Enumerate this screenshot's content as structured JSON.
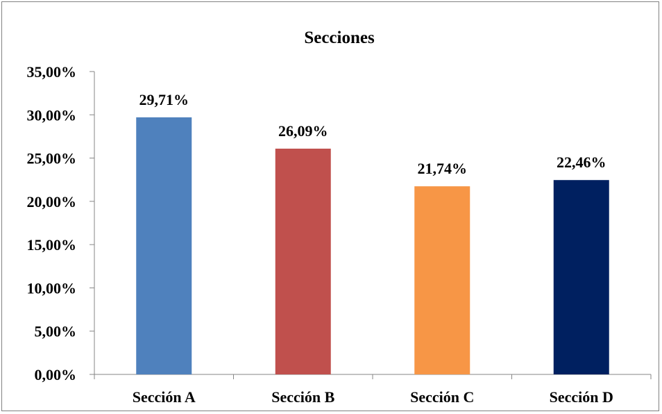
{
  "chart_data": {
    "type": "bar",
    "title": "Secciones",
    "xlabel": "",
    "ylabel": "",
    "categories": [
      "Sección A",
      "Sección B",
      "Sección C",
      "Sección D"
    ],
    "values": [
      29.71,
      26.09,
      21.74,
      22.46
    ],
    "data_labels": [
      "29,71%",
      "26,09%",
      "21,74%",
      "22,46%"
    ],
    "bar_colors": [
      "#4F81BD",
      "#C0504D",
      "#F79646",
      "#002060"
    ],
    "ylim": [
      0,
      35
    ],
    "yticks": [
      0,
      5,
      10,
      15,
      20,
      25,
      30,
      35
    ],
    "ytick_labels": [
      "0,00%",
      "5,00%",
      "10,00%",
      "15,00%",
      "20,00%",
      "25,00%",
      "30,00%",
      "35,00%"
    ],
    "grid": false,
    "legend": "none"
  }
}
